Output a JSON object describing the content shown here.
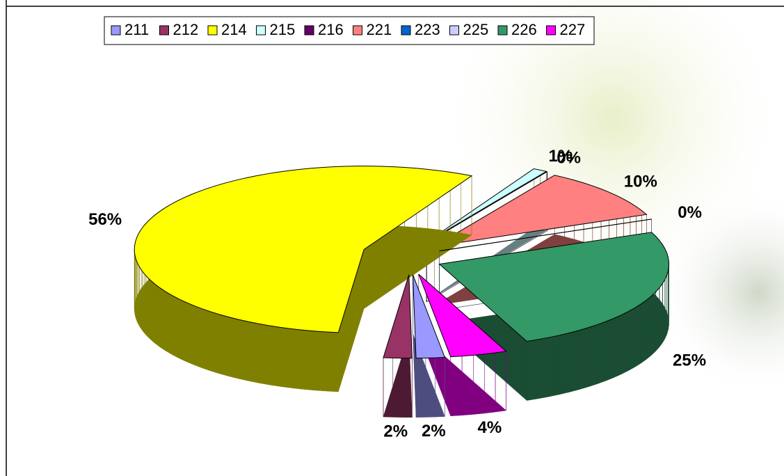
{
  "chart_data": {
    "type": "pie3d",
    "categories": [
      "211",
      "212",
      "214",
      "215",
      "216",
      "221",
      "223",
      "225",
      "226",
      "227"
    ],
    "values": [
      2,
      2,
      56,
      1,
      0,
      10,
      0,
      0,
      25,
      4
    ],
    "value_labels": [
      "2%",
      "2%",
      "56%",
      "1%",
      "0%",
      "10%",
      null,
      "0%",
      "25%",
      "4%"
    ],
    "colors": [
      "#9999ff",
      "#993366",
      "#ffff00",
      "#ccffff",
      "#660066",
      "#ff8080",
      "#0066cc",
      "#ccccff",
      "#339966",
      "#ff00ff"
    ],
    "legend": "top"
  }
}
